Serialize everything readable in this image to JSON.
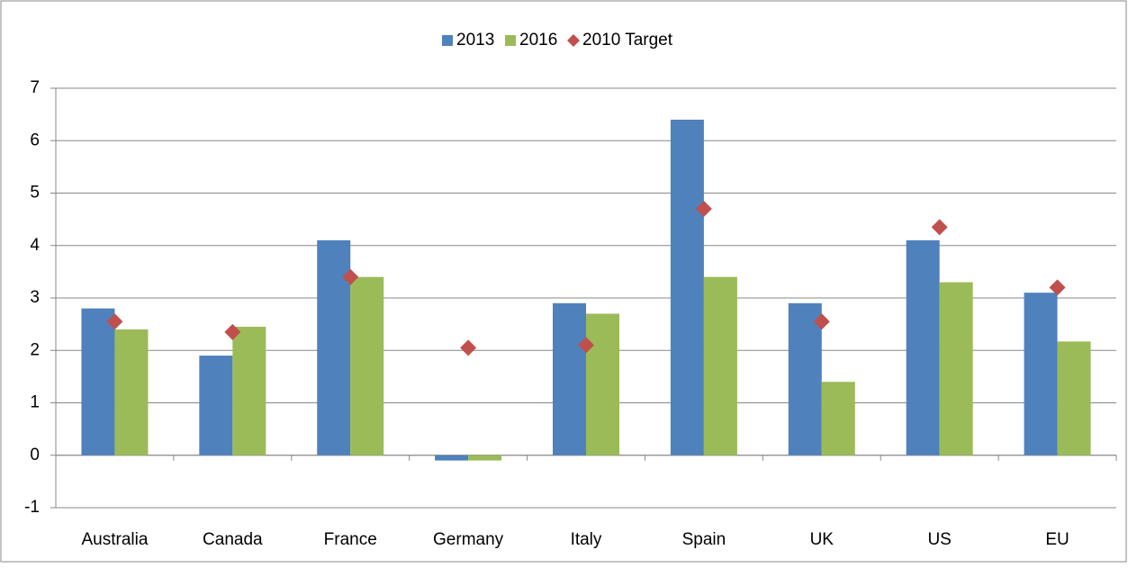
{
  "chart_data": {
    "type": "bar",
    "categories": [
      "Australia",
      "Canada",
      "France",
      "Germany",
      "Italy",
      "Spain",
      "UK",
      "US",
      "EU"
    ],
    "series": [
      {
        "name": "2013",
        "color": "#4f81bd",
        "values": [
          2.8,
          1.9,
          4.1,
          -0.1,
          2.9,
          6.4,
          2.9,
          4.1,
          3.1
        ]
      },
      {
        "name": "2016",
        "color": "#9bbb59",
        "values": [
          2.4,
          2.45,
          3.4,
          -0.1,
          2.7,
          3.4,
          1.4,
          3.3,
          2.17
        ]
      },
      {
        "name": "2010 Target",
        "color": "#c0504d",
        "type": "scatter",
        "values": [
          2.55,
          2.35,
          3.4,
          2.05,
          2.1,
          4.7,
          2.55,
          4.35,
          3.2
        ]
      }
    ],
    "ylim": [
      -1,
      7
    ],
    "yticks": [
      -1,
      0,
      1,
      2,
      3,
      4,
      5,
      6,
      7
    ],
    "grid": true,
    "legend": "top"
  }
}
